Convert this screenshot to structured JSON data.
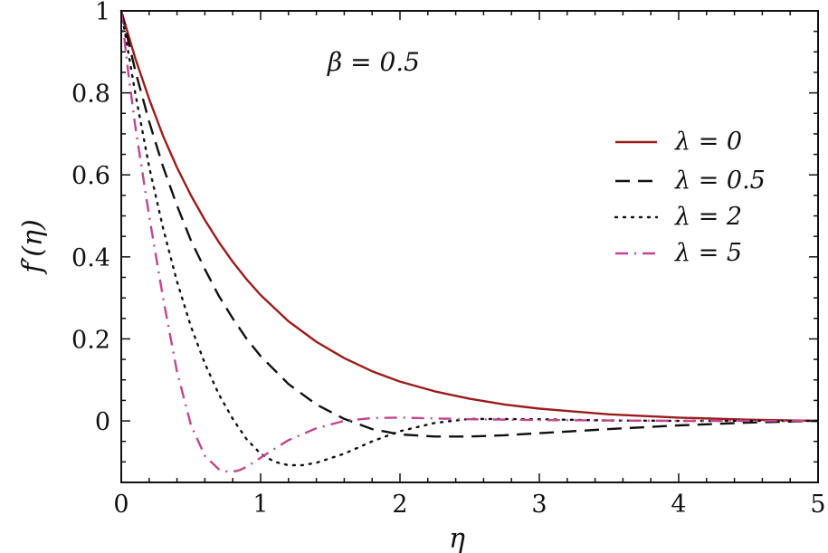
{
  "chart_data": {
    "type": "line",
    "title": "",
    "annotation": "β = 0.5",
    "xlabel": "η",
    "ylabel": "f′(η)",
    "xlim": [
      0,
      5
    ],
    "ylim": [
      -0.15,
      1
    ],
    "xticks": [
      0,
      1,
      2,
      3,
      4,
      5
    ],
    "xtick_labels": [
      "0",
      "1",
      "2",
      "3",
      "4",
      "5"
    ],
    "yticks": [
      0,
      0.2,
      0.4,
      0.6,
      0.8,
      1
    ],
    "ytick_labels": [
      "0",
      "0.2",
      "0.4",
      "0.6",
      "0.8",
      "1"
    ],
    "grid": false,
    "legend_position": "upper right",
    "series": [
      {
        "name": "λ = 0",
        "color": "#9b1c1c",
        "style": "solid",
        "x": [
          0,
          0.1,
          0.2,
          0.3,
          0.4,
          0.5,
          0.6,
          0.7,
          0.8,
          0.9,
          1.0,
          1.2,
          1.4,
          1.6,
          1.8,
          2.0,
          2.25,
          2.5,
          2.75,
          3.0,
          3.5,
          4.0,
          4.5,
          5.0
        ],
        "y": [
          1.0,
          0.885,
          0.785,
          0.695,
          0.618,
          0.55,
          0.49,
          0.436,
          0.388,
          0.345,
          0.307,
          0.243,
          0.193,
          0.153,
          0.121,
          0.096,
          0.072,
          0.054,
          0.04,
          0.03,
          0.016,
          0.008,
          0.003,
          0.0
        ]
      },
      {
        "name": "λ = 0.5",
        "color": "#111111",
        "style": "dashed",
        "x": [
          0,
          0.1,
          0.2,
          0.3,
          0.4,
          0.5,
          0.6,
          0.7,
          0.8,
          0.9,
          1.0,
          1.2,
          1.4,
          1.6,
          1.8,
          2.0,
          2.25,
          2.5,
          2.75,
          3.0,
          3.5,
          4.0,
          4.5,
          5.0
        ],
        "y": [
          1.0,
          0.855,
          0.73,
          0.62,
          0.525,
          0.44,
          0.37,
          0.305,
          0.25,
          0.2,
          0.158,
          0.09,
          0.04,
          0.005,
          -0.02,
          -0.033,
          -0.038,
          -0.038,
          -0.035,
          -0.03,
          -0.02,
          -0.011,
          -0.004,
          0.0
        ]
      },
      {
        "name": "λ = 2",
        "color": "#111111",
        "style": "dotted",
        "x": [
          0,
          0.1,
          0.2,
          0.3,
          0.4,
          0.5,
          0.6,
          0.7,
          0.8,
          0.9,
          1.0,
          1.1,
          1.2,
          1.3,
          1.4,
          1.6,
          1.8,
          2.0,
          2.25,
          2.5,
          3.0,
          3.5,
          4.0,
          5.0
        ],
        "y": [
          1.0,
          0.8,
          0.62,
          0.47,
          0.34,
          0.23,
          0.14,
          0.065,
          0.005,
          -0.045,
          -0.08,
          -0.1,
          -0.108,
          -0.108,
          -0.102,
          -0.08,
          -0.05,
          -0.025,
          -0.005,
          0.005,
          0.004,
          0.001,
          0.0,
          0.0
        ]
      },
      {
        "name": "λ = 5",
        "color": "#c0468f",
        "style": "dashdot",
        "x": [
          0,
          0.05,
          0.1,
          0.2,
          0.3,
          0.4,
          0.5,
          0.6,
          0.7,
          0.75,
          0.8,
          0.85,
          0.9,
          1.0,
          1.1,
          1.2,
          1.4,
          1.6,
          1.8,
          2.0,
          2.25,
          2.5,
          3.0,
          4.0,
          5.0
        ],
        "y": [
          1.0,
          0.85,
          0.72,
          0.5,
          0.3,
          0.12,
          -0.01,
          -0.085,
          -0.118,
          -0.123,
          -0.124,
          -0.12,
          -0.112,
          -0.09,
          -0.068,
          -0.047,
          -0.018,
          0.0,
          0.007,
          0.008,
          0.006,
          0.004,
          0.002,
          0.0,
          0.0
        ]
      }
    ]
  },
  "labels": {
    "annotation": "β = 0.5",
    "xlabel": "η",
    "ylabel": "f′(η)"
  }
}
